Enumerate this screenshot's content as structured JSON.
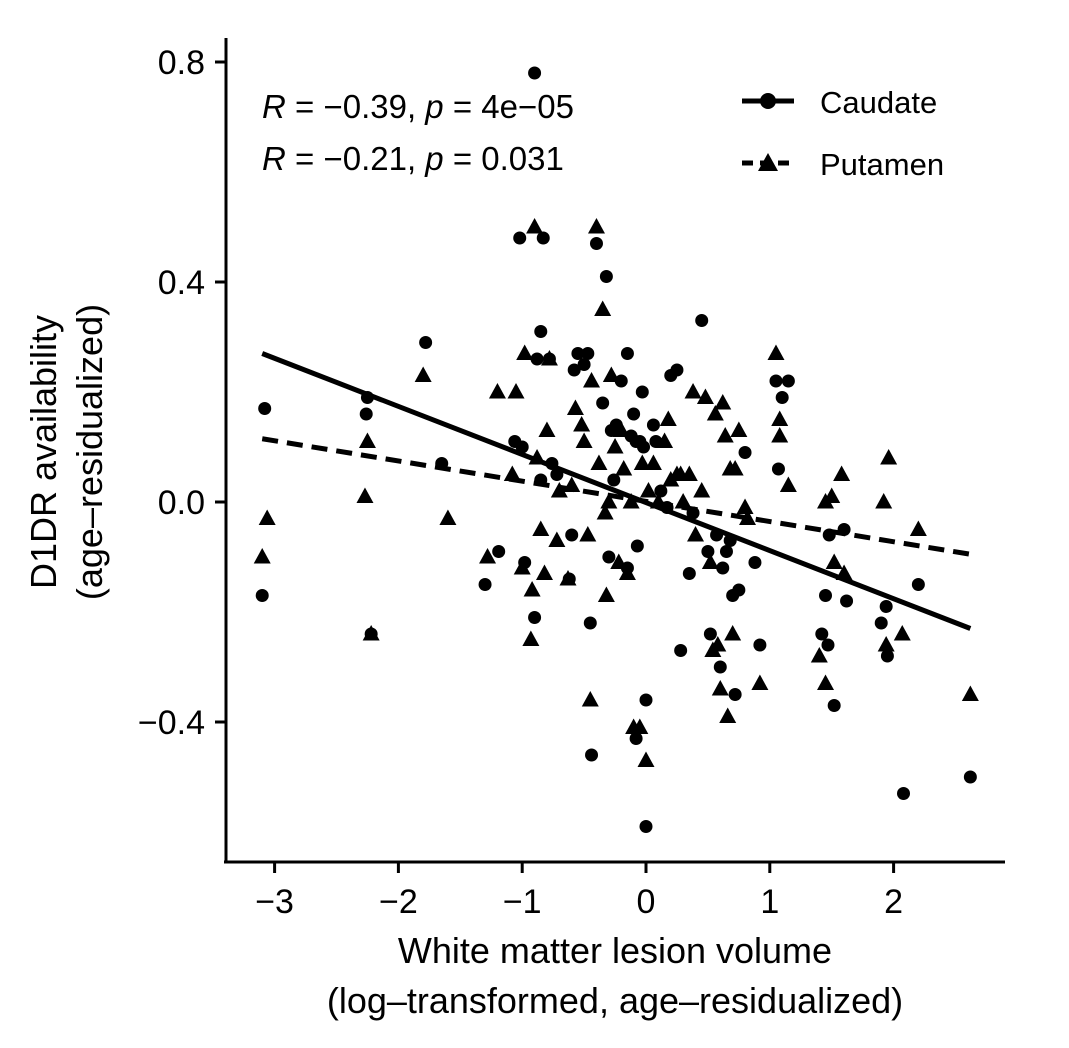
{
  "chart_data": {
    "type": "scatter",
    "xlabel": [
      "White matter lesion volume",
      "(log–transformed, age–residualized)"
    ],
    "ylabel": [
      "D1DR availability",
      "(age–residualized)"
    ],
    "xlim": [
      -3.2,
      2.8
    ],
    "ylim": [
      -0.65,
      0.85
    ],
    "x_ticks": [
      -3,
      -2,
      -1,
      0,
      1,
      2
    ],
    "x_tick_labels": [
      "−3",
      "−2",
      "−1",
      "0",
      "1",
      "2"
    ],
    "y_ticks": [
      0.8,
      0.4,
      0.0,
      -0.4
    ],
    "y_tick_labels": [
      "0.8",
      "0.4",
      "0.0",
      "−0.4"
    ],
    "grid": false,
    "legend_position": "top-right",
    "annotations": [
      {
        "R": "−0.39",
        "p": "4e−05"
      },
      {
        "R": "−0.21",
        "p": "0.031"
      }
    ],
    "series": [
      {
        "name": "Caudate",
        "marker": "circle",
        "line_style": "solid",
        "fit": {
          "x": [
            -3.1,
            2.62
          ],
          "y": [
            0.27,
            -0.23
          ]
        },
        "points": [
          [
            -3.08,
            0.17
          ],
          [
            -3.1,
            -0.17
          ],
          [
            -2.25,
            0.19
          ],
          [
            -2.26,
            0.16
          ],
          [
            -2.22,
            -0.24
          ],
          [
            -1.78,
            0.29
          ],
          [
            -1.65,
            0.07
          ],
          [
            -1.3,
            -0.15
          ],
          [
            -1.19,
            -0.09
          ],
          [
            -1.06,
            0.11
          ],
          [
            -1.0,
            0.1
          ],
          [
            -1.02,
            0.48
          ],
          [
            -0.98,
            -0.11
          ],
          [
            -0.9,
            0.78
          ],
          [
            -0.9,
            -0.21
          ],
          [
            -0.83,
            0.48
          ],
          [
            -0.85,
            0.31
          ],
          [
            -0.88,
            0.26
          ],
          [
            -0.85,
            0.04
          ],
          [
            -0.76,
            0.07
          ],
          [
            -0.78,
            0.26
          ],
          [
            -0.72,
            0.05
          ],
          [
            -0.62,
            -0.14
          ],
          [
            -0.6,
            -0.06
          ],
          [
            -0.58,
            0.24
          ],
          [
            -0.55,
            0.27
          ],
          [
            -0.5,
            0.25
          ],
          [
            -0.47,
            0.27
          ],
          [
            -0.45,
            -0.22
          ],
          [
            -0.44,
            -0.46
          ],
          [
            -0.4,
            0.47
          ],
          [
            -0.35,
            0.18
          ],
          [
            -0.32,
            0.41
          ],
          [
            -0.28,
            0.13
          ],
          [
            -0.26,
            0.04
          ],
          [
            -0.3,
            -0.1
          ],
          [
            -0.24,
            0.14
          ],
          [
            -0.2,
            0.22
          ],
          [
            -0.15,
            0.27
          ],
          [
            -0.12,
            0.12
          ],
          [
            -0.15,
            -0.12
          ],
          [
            -0.1,
            0.16
          ],
          [
            -0.08,
            0.11
          ],
          [
            -0.07,
            -0.08
          ],
          [
            -0.05,
            0.11
          ],
          [
            -0.08,
            -0.43
          ],
          [
            -0.03,
            0.2
          ],
          [
            -0.02,
            0.1
          ],
          [
            0.0,
            -0.36
          ],
          [
            0.0,
            -0.59
          ],
          [
            0.06,
            0.14
          ],
          [
            0.08,
            0.11
          ],
          [
            0.12,
            0.02
          ],
          [
            0.17,
            -0.01
          ],
          [
            0.2,
            0.23
          ],
          [
            0.25,
            0.24
          ],
          [
            0.28,
            -0.27
          ],
          [
            0.35,
            -0.13
          ],
          [
            0.38,
            -0.02
          ],
          [
            0.45,
            0.33
          ],
          [
            0.5,
            -0.09
          ],
          [
            0.52,
            -0.24
          ],
          [
            0.57,
            -0.06
          ],
          [
            0.6,
            -0.3
          ],
          [
            0.62,
            -0.12
          ],
          [
            0.65,
            -0.09
          ],
          [
            0.68,
            -0.07
          ],
          [
            0.7,
            -0.17
          ],
          [
            0.72,
            -0.35
          ],
          [
            0.75,
            -0.16
          ],
          [
            0.8,
            0.09
          ],
          [
            0.88,
            -0.11
          ],
          [
            0.92,
            -0.26
          ],
          [
            1.05,
            0.22
          ],
          [
            1.07,
            0.06
          ],
          [
            1.1,
            0.19
          ],
          [
            1.15,
            0.22
          ],
          [
            1.42,
            -0.24
          ],
          [
            1.45,
            -0.17
          ],
          [
            1.48,
            -0.06
          ],
          [
            1.47,
            -0.26
          ],
          [
            1.52,
            -0.37
          ],
          [
            1.6,
            -0.05
          ],
          [
            1.62,
            -0.18
          ],
          [
            1.9,
            -0.22
          ],
          [
            1.95,
            -0.28
          ],
          [
            1.94,
            -0.19
          ],
          [
            2.08,
            -0.53
          ],
          [
            2.2,
            -0.15
          ],
          [
            2.62,
            -0.5
          ]
        ]
      },
      {
        "name": "Putamen",
        "marker": "triangle",
        "line_style": "dashed",
        "fit": {
          "x": [
            -3.1,
            2.62
          ],
          "y": [
            0.115,
            -0.095
          ]
        },
        "points": [
          [
            -3.1,
            -0.1
          ],
          [
            -3.06,
            -0.03
          ],
          [
            -2.25,
            0.11
          ],
          [
            -2.27,
            0.01
          ],
          [
            -2.22,
            -0.24
          ],
          [
            -1.8,
            0.23
          ],
          [
            -1.6,
            -0.03
          ],
          [
            -1.28,
            -0.1
          ],
          [
            -1.2,
            0.2
          ],
          [
            -1.08,
            0.05
          ],
          [
            -1.05,
            0.2
          ],
          [
            -0.98,
            0.27
          ],
          [
            -1.0,
            -0.12
          ],
          [
            -0.92,
            -0.16
          ],
          [
            -0.93,
            -0.25
          ],
          [
            -0.9,
            0.5
          ],
          [
            -0.88,
            0.08
          ],
          [
            -0.85,
            -0.05
          ],
          [
            -0.82,
            -0.13
          ],
          [
            -0.8,
            0.13
          ],
          [
            -0.78,
            0.26
          ],
          [
            -0.72,
            -0.07
          ],
          [
            -0.7,
            0.02
          ],
          [
            -0.63,
            -0.14
          ],
          [
            -0.6,
            0.03
          ],
          [
            -0.57,
            0.17
          ],
          [
            -0.52,
            0.14
          ],
          [
            -0.5,
            0.11
          ],
          [
            -0.47,
            -0.06
          ],
          [
            -0.45,
            -0.36
          ],
          [
            -0.44,
            0.22
          ],
          [
            -0.4,
            0.5
          ],
          [
            -0.38,
            0.07
          ],
          [
            -0.35,
            0.35
          ],
          [
            -0.33,
            -0.02
          ],
          [
            -0.32,
            -0.17
          ],
          [
            -0.3,
            0.0
          ],
          [
            -0.28,
            0.23
          ],
          [
            -0.25,
            0.1
          ],
          [
            -0.22,
            -0.11
          ],
          [
            -0.2,
            0.13
          ],
          [
            -0.18,
            0.06
          ],
          [
            -0.15,
            -0.13
          ],
          [
            -0.12,
            0.0
          ],
          [
            -0.1,
            -0.41
          ],
          [
            -0.05,
            -0.41
          ],
          [
            -0.03,
            0.07
          ],
          [
            0.0,
            -0.47
          ],
          [
            0.02,
            0.02
          ],
          [
            0.06,
            0.07
          ],
          [
            0.1,
            0.0
          ],
          [
            0.15,
            0.11
          ],
          [
            0.18,
            0.15
          ],
          [
            0.2,
            0.04
          ],
          [
            0.25,
            0.05
          ],
          [
            0.28,
            0.05
          ],
          [
            0.3,
            0.0
          ],
          [
            0.35,
            0.05
          ],
          [
            0.38,
            0.2
          ],
          [
            0.4,
            -0.06
          ],
          [
            0.45,
            0.02
          ],
          [
            0.48,
            0.19
          ],
          [
            0.52,
            -0.11
          ],
          [
            0.54,
            -0.27
          ],
          [
            0.56,
            0.16
          ],
          [
            0.58,
            -0.26
          ],
          [
            0.6,
            -0.34
          ],
          [
            0.62,
            0.18
          ],
          [
            0.64,
            0.12
          ],
          [
            0.66,
            -0.39
          ],
          [
            0.68,
            0.06
          ],
          [
            0.7,
            -0.24
          ],
          [
            0.72,
            0.06
          ],
          [
            0.75,
            0.13
          ],
          [
            0.8,
            -0.01
          ],
          [
            0.82,
            -0.03
          ],
          [
            0.92,
            -0.33
          ],
          [
            1.05,
            0.27
          ],
          [
            1.08,
            0.12
          ],
          [
            1.08,
            0.15
          ],
          [
            1.15,
            0.03
          ],
          [
            1.4,
            -0.28
          ],
          [
            1.45,
            -0.33
          ],
          [
            1.45,
            0.0
          ],
          [
            1.5,
            0.01
          ],
          [
            1.52,
            -0.11
          ],
          [
            1.58,
            0.05
          ],
          [
            1.6,
            -0.13
          ],
          [
            1.92,
            0.0
          ],
          [
            1.96,
            0.08
          ],
          [
            1.94,
            -0.26
          ],
          [
            2.07,
            -0.24
          ],
          [
            2.2,
            -0.05
          ],
          [
            2.62,
            -0.35
          ]
        ]
      }
    ]
  }
}
